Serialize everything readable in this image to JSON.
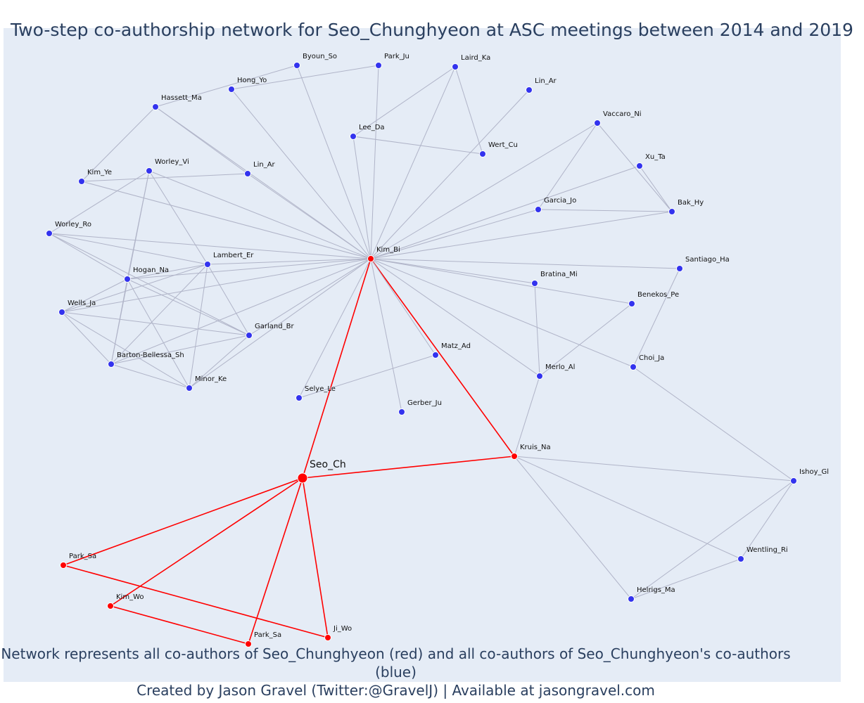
{
  "title": "Two-step co-authorship network for Seo_Chunghyeon at ASC meetings between 2014 and 2019",
  "caption": {
    "line1": "Network represents all co-authors of Seo_Chunghyeon (red) and all co-authors of Seo_Chunghyeon's co-authors (blue)",
    "line2": "Created by Jason Gravel (Twitter:@GravelJ) | Available at jasongravel.com"
  },
  "colors": {
    "background": "#e5ecf6",
    "first_step": "#ff0000",
    "second_step": "#3333ee",
    "edge_first": "#ff0000",
    "edge_second": "#b0b4c8",
    "text": "#2a3f5f"
  },
  "network": {
    "center": "Seo_Ch",
    "nodes": [
      {
        "id": "Seo_Ch",
        "group": "center"
      },
      {
        "id": "Kim_Bi",
        "group": "first"
      },
      {
        "id": "Kruis_Na",
        "group": "first"
      },
      {
        "id": "Park_Sa",
        "group": "first"
      },
      {
        "id": "Kim_Wo",
        "group": "first"
      },
      {
        "id": "Park_Sa_2",
        "label": "Park_Sa",
        "group": "first"
      },
      {
        "id": "Ji_Wo",
        "group": "first"
      },
      {
        "id": "Byoun_So",
        "group": "second"
      },
      {
        "id": "Park_Ju",
        "group": "second"
      },
      {
        "id": "Laird_Ka",
        "group": "second"
      },
      {
        "id": "Hong_Yo",
        "group": "second"
      },
      {
        "id": "Lin_Ar_1",
        "label": "Lin_Ar",
        "group": "second"
      },
      {
        "id": "Hassett_Ma",
        "group": "second"
      },
      {
        "id": "Lee_Da",
        "group": "second"
      },
      {
        "id": "Vaccaro_Ni",
        "group": "second"
      },
      {
        "id": "Wert_Cu",
        "group": "second"
      },
      {
        "id": "Xu_Ta",
        "group": "second"
      },
      {
        "id": "Worley_Vi",
        "group": "second"
      },
      {
        "id": "Lin_Ar_2",
        "label": "Lin_Ar",
        "group": "second"
      },
      {
        "id": "Kim_Ye",
        "group": "second"
      },
      {
        "id": "Garcia_Jo",
        "group": "second"
      },
      {
        "id": "Bak_Hy",
        "group": "second"
      },
      {
        "id": "Worley_Ro",
        "group": "second"
      },
      {
        "id": "Lambert_Er",
        "group": "second"
      },
      {
        "id": "Santiago_Ha",
        "group": "second"
      },
      {
        "id": "Hogan_Na",
        "group": "second"
      },
      {
        "id": "Bratina_Mi",
        "group": "second"
      },
      {
        "id": "Benekos_Pe",
        "group": "second"
      },
      {
        "id": "Wells_Ja",
        "group": "second"
      },
      {
        "id": "Garland_Br",
        "group": "second"
      },
      {
        "id": "Matz_Ad",
        "group": "second"
      },
      {
        "id": "Barton-Bellessa_Sh",
        "group": "second"
      },
      {
        "id": "Choi_Ja",
        "group": "second"
      },
      {
        "id": "Merlo_Al",
        "group": "second"
      },
      {
        "id": "Minor_Ke",
        "group": "second"
      },
      {
        "id": "Selye_Le",
        "group": "second"
      },
      {
        "id": "Gerber_Ju",
        "group": "second"
      },
      {
        "id": "Ishoy_Gl",
        "group": "second"
      },
      {
        "id": "Wentling_Ri",
        "group": "second"
      },
      {
        "id": "Helrigs_Ma",
        "group": "second"
      }
    ],
    "edges": [
      [
        "Seo_Ch",
        "Kim_Bi"
      ],
      [
        "Seo_Ch",
        "Kruis_Na"
      ],
      [
        "Seo_Ch",
        "Park_Sa"
      ],
      [
        "Seo_Ch",
        "Kim_Wo"
      ],
      [
        "Seo_Ch",
        "Park_Sa_2"
      ],
      [
        "Seo_Ch",
        "Ji_Wo"
      ],
      [
        "Kim_Bi",
        "Kruis_Na"
      ],
      [
        "Park_Sa",
        "Ji_Wo"
      ],
      [
        "Kim_Wo",
        "Park_Sa_2"
      ],
      [
        "Kim_Bi",
        "Byoun_So"
      ],
      [
        "Kim_Bi",
        "Park_Ju"
      ],
      [
        "Kim_Bi",
        "Laird_Ka"
      ],
      [
        "Kim_Bi",
        "Hong_Yo"
      ],
      [
        "Kim_Bi",
        "Lin_Ar_1"
      ],
      [
        "Kim_Bi",
        "Hassett_Ma"
      ],
      [
        "Kim_Bi",
        "Lee_Da"
      ],
      [
        "Kim_Bi",
        "Vaccaro_Ni"
      ],
      [
        "Kim_Bi",
        "Xu_Ta"
      ],
      [
        "Kim_Bi",
        "Worley_Vi"
      ],
      [
        "Kim_Bi",
        "Lin_Ar_2"
      ],
      [
        "Kim_Bi",
        "Kim_Ye"
      ],
      [
        "Kim_Bi",
        "Garcia_Jo"
      ],
      [
        "Kim_Bi",
        "Bak_Hy"
      ],
      [
        "Kim_Bi",
        "Worley_Ro"
      ],
      [
        "Kim_Bi",
        "Lambert_Er"
      ],
      [
        "Kim_Bi",
        "Santiago_Ha"
      ],
      [
        "Kim_Bi",
        "Hogan_Na"
      ],
      [
        "Kim_Bi",
        "Bratina_Mi"
      ],
      [
        "Kim_Bi",
        "Benekos_Pe"
      ],
      [
        "Kim_Bi",
        "Wells_Ja"
      ],
      [
        "Kim_Bi",
        "Garland_Br"
      ],
      [
        "Kim_Bi",
        "Matz_Ad"
      ],
      [
        "Kim_Bi",
        "Barton-Bellessa_Sh"
      ],
      [
        "Kim_Bi",
        "Choi_Ja"
      ],
      [
        "Kim_Bi",
        "Merlo_Al"
      ],
      [
        "Kim_Bi",
        "Minor_Ke"
      ],
      [
        "Kim_Bi",
        "Selye_Le"
      ],
      [
        "Kim_Bi",
        "Gerber_Ju"
      ],
      [
        "Hong_Yo",
        "Park_Ju"
      ],
      [
        "Hassett_Ma",
        "Byoun_So"
      ],
      [
        "Hassett_Ma",
        "Kim_Ye"
      ],
      [
        "Hassett_Ma",
        "Lin_Ar_2"
      ],
      [
        "Lee_Da",
        "Laird_Ka"
      ],
      [
        "Lee_Da",
        "Wert_Cu"
      ],
      [
        "Laird_Ka",
        "Wert_Cu"
      ],
      [
        "Vaccaro_Ni",
        "Garcia_Jo"
      ],
      [
        "Vaccaro_Ni",
        "Bak_Hy"
      ],
      [
        "Xu_Ta",
        "Bak_Hy"
      ],
      [
        "Garcia_Jo",
        "Bak_Hy"
      ],
      [
        "Worley_Vi",
        "Worley_Ro"
      ],
      [
        "Worley_Vi",
        "Hogan_Na"
      ],
      [
        "Worley_Vi",
        "Lambert_Er"
      ],
      [
        "Worley_Vi",
        "Barton-Bellessa_Sh"
      ],
      [
        "Kim_Ye",
        "Lin_Ar_2"
      ],
      [
        "Worley_Ro",
        "Hogan_Na"
      ],
      [
        "Worley_Ro",
        "Lambert_Er"
      ],
      [
        "Worley_Ro",
        "Garland_Br"
      ],
      [
        "Lambert_Er",
        "Hogan_Na"
      ],
      [
        "Lambert_Er",
        "Wells_Ja"
      ],
      [
        "Lambert_Er",
        "Garland_Br"
      ],
      [
        "Lambert_Er",
        "Barton-Bellessa_Sh"
      ],
      [
        "Lambert_Er",
        "Minor_Ke"
      ],
      [
        "Hogan_Na",
        "Wells_Ja"
      ],
      [
        "Hogan_Na",
        "Garland_Br"
      ],
      [
        "Hogan_Na",
        "Barton-Bellessa_Sh"
      ],
      [
        "Hogan_Na",
        "Minor_Ke"
      ],
      [
        "Wells_Ja",
        "Garland_Br"
      ],
      [
        "Wells_Ja",
        "Barton-Bellessa_Sh"
      ],
      [
        "Wells_Ja",
        "Minor_Ke"
      ],
      [
        "Garland_Br",
        "Barton-Bellessa_Sh"
      ],
      [
        "Garland_Br",
        "Minor_Ke"
      ],
      [
        "Barton-Bellessa_Sh",
        "Minor_Ke"
      ],
      [
        "Matz_Ad",
        "Selye_Le"
      ],
      [
        "Bratina_Mi",
        "Merlo_Al"
      ],
      [
        "Benekos_Pe",
        "Merlo_Al"
      ],
      [
        "Santiago_Ha",
        "Choi_Ja"
      ],
      [
        "Merlo_Al",
        "Kruis_Na"
      ],
      [
        "Choi_Ja",
        "Ishoy_Gl"
      ],
      [
        "Kruis_Na",
        "Ishoy_Gl"
      ],
      [
        "Kruis_Na",
        "Wentling_Ri"
      ],
      [
        "Kruis_Na",
        "Helrigs_Ma"
      ],
      [
        "Ishoy_Gl",
        "Wentling_Ri"
      ],
      [
        "Ishoy_Gl",
        "Helrigs_Ma"
      ],
      [
        "Wentling_Ri",
        "Helrigs_Ma"
      ]
    ]
  }
}
